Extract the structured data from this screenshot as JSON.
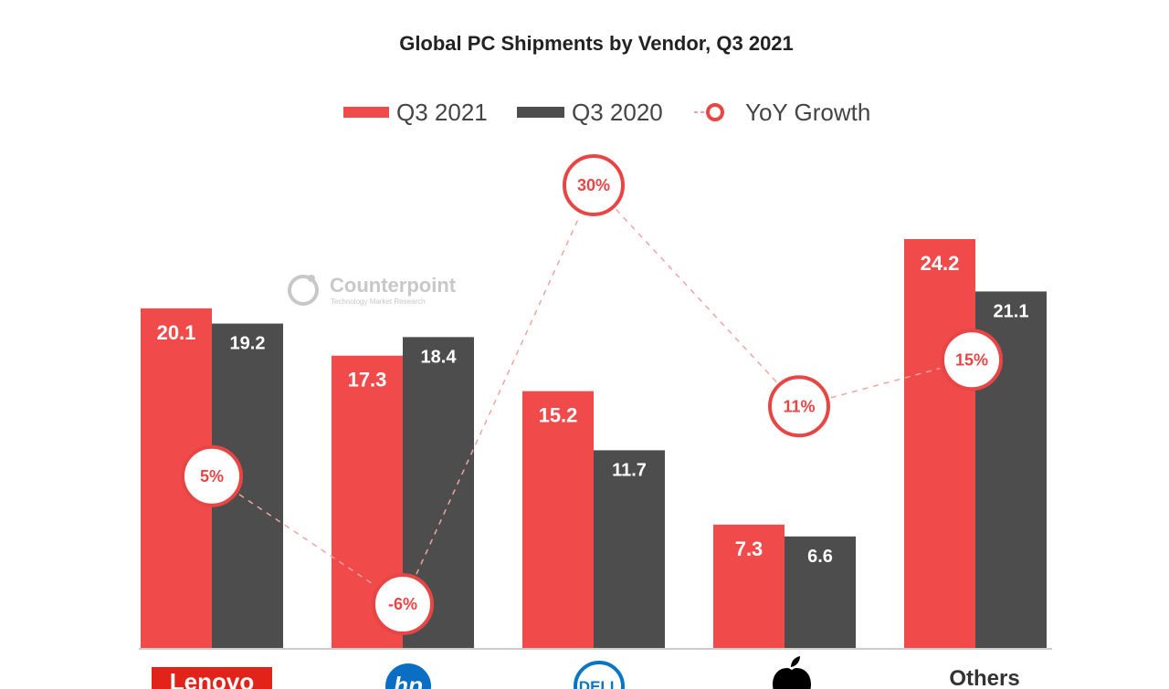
{
  "chart_data": {
    "type": "bar",
    "title": "Global PC Shipments by Vendor, Q3 2021",
    "categories": [
      "Lenovo",
      "HP",
      "Dell",
      "Apple",
      "Others"
    ],
    "series": [
      {
        "name": "Q3 2021",
        "values": [
          20.1,
          17.3,
          15.2,
          7.3,
          24.2
        ]
      },
      {
        "name": "Q3 2020",
        "values": [
          19.2,
          18.4,
          11.7,
          6.6,
          21.1
        ]
      }
    ],
    "yoy": {
      "name": "YoY Growth",
      "values": [
        5,
        -6,
        30,
        11,
        15
      ],
      "labels": [
        "5%",
        "-6%",
        "30%",
        "11%",
        "15%"
      ]
    },
    "category_labels": {
      "Others": "Others"
    },
    "logo_text": {
      "lenovo": "Lenovo",
      "hp": "hp",
      "dell": "DELL"
    },
    "ylim": [
      0,
      28
    ],
    "watermark": {
      "name": "Counterpoint",
      "tagline": "Technology Market Research"
    },
    "colors": {
      "q3_2021": "#f04a4a",
      "q3_2020": "#4d4d4d",
      "yoy": "#e84545"
    }
  }
}
